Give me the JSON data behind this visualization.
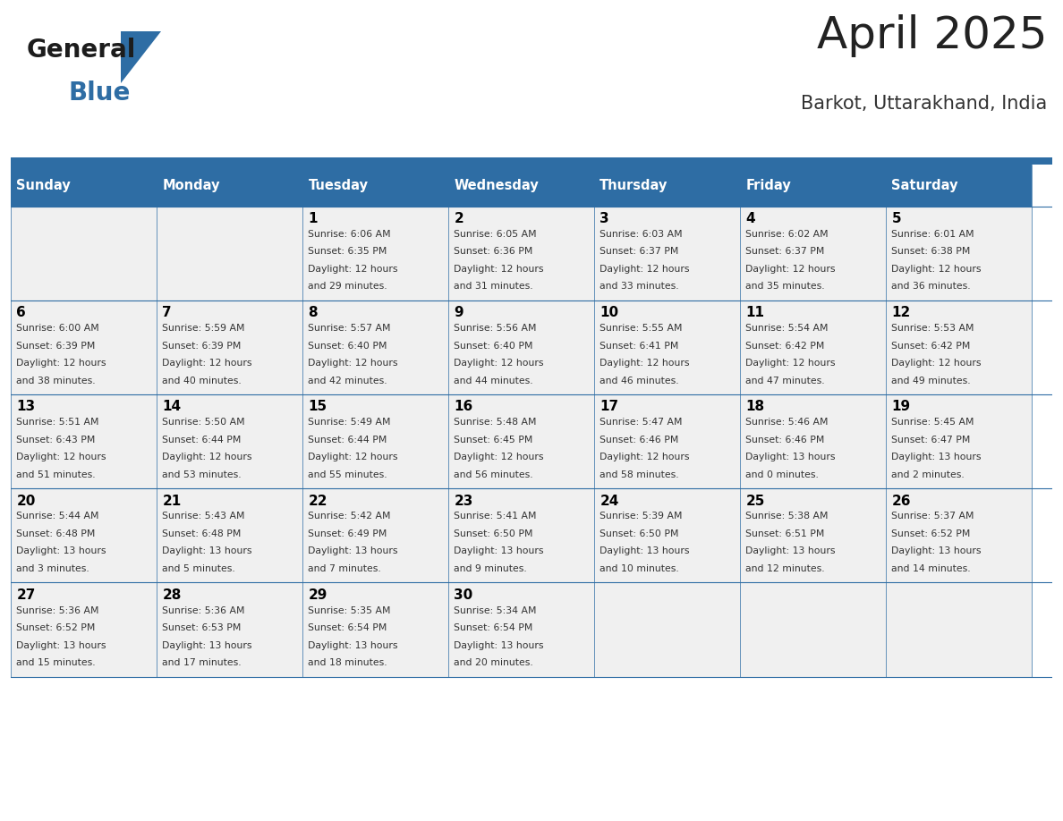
{
  "title": "April 2025",
  "subtitle": "Barkot, Uttarakhand, India",
  "header_bg_color": "#2E6DA4",
  "header_text_color": "#FFFFFF",
  "cell_bg_color": "#F0F0F0",
  "day_names": [
    "Sunday",
    "Monday",
    "Tuesday",
    "Wednesday",
    "Thursday",
    "Friday",
    "Saturday"
  ],
  "title_color": "#222222",
  "subtitle_color": "#333333",
  "day_num_color": "#000000",
  "text_color": "#333333",
  "line_color": "#2E6DA4",
  "calendar": [
    [
      {
        "day": null,
        "data": null
      },
      {
        "day": null,
        "data": null
      },
      {
        "day": 1,
        "data": [
          "Sunrise: 6:06 AM",
          "Sunset: 6:35 PM",
          "Daylight: 12 hours",
          "and 29 minutes."
        ]
      },
      {
        "day": 2,
        "data": [
          "Sunrise: 6:05 AM",
          "Sunset: 6:36 PM",
          "Daylight: 12 hours",
          "and 31 minutes."
        ]
      },
      {
        "day": 3,
        "data": [
          "Sunrise: 6:03 AM",
          "Sunset: 6:37 PM",
          "Daylight: 12 hours",
          "and 33 minutes."
        ]
      },
      {
        "day": 4,
        "data": [
          "Sunrise: 6:02 AM",
          "Sunset: 6:37 PM",
          "Daylight: 12 hours",
          "and 35 minutes."
        ]
      },
      {
        "day": 5,
        "data": [
          "Sunrise: 6:01 AM",
          "Sunset: 6:38 PM",
          "Daylight: 12 hours",
          "and 36 minutes."
        ]
      }
    ],
    [
      {
        "day": 6,
        "data": [
          "Sunrise: 6:00 AM",
          "Sunset: 6:39 PM",
          "Daylight: 12 hours",
          "and 38 minutes."
        ]
      },
      {
        "day": 7,
        "data": [
          "Sunrise: 5:59 AM",
          "Sunset: 6:39 PM",
          "Daylight: 12 hours",
          "and 40 minutes."
        ]
      },
      {
        "day": 8,
        "data": [
          "Sunrise: 5:57 AM",
          "Sunset: 6:40 PM",
          "Daylight: 12 hours",
          "and 42 minutes."
        ]
      },
      {
        "day": 9,
        "data": [
          "Sunrise: 5:56 AM",
          "Sunset: 6:40 PM",
          "Daylight: 12 hours",
          "and 44 minutes."
        ]
      },
      {
        "day": 10,
        "data": [
          "Sunrise: 5:55 AM",
          "Sunset: 6:41 PM",
          "Daylight: 12 hours",
          "and 46 minutes."
        ]
      },
      {
        "day": 11,
        "data": [
          "Sunrise: 5:54 AM",
          "Sunset: 6:42 PM",
          "Daylight: 12 hours",
          "and 47 minutes."
        ]
      },
      {
        "day": 12,
        "data": [
          "Sunrise: 5:53 AM",
          "Sunset: 6:42 PM",
          "Daylight: 12 hours",
          "and 49 minutes."
        ]
      }
    ],
    [
      {
        "day": 13,
        "data": [
          "Sunrise: 5:51 AM",
          "Sunset: 6:43 PM",
          "Daylight: 12 hours",
          "and 51 minutes."
        ]
      },
      {
        "day": 14,
        "data": [
          "Sunrise: 5:50 AM",
          "Sunset: 6:44 PM",
          "Daylight: 12 hours",
          "and 53 minutes."
        ]
      },
      {
        "day": 15,
        "data": [
          "Sunrise: 5:49 AM",
          "Sunset: 6:44 PM",
          "Daylight: 12 hours",
          "and 55 minutes."
        ]
      },
      {
        "day": 16,
        "data": [
          "Sunrise: 5:48 AM",
          "Sunset: 6:45 PM",
          "Daylight: 12 hours",
          "and 56 minutes."
        ]
      },
      {
        "day": 17,
        "data": [
          "Sunrise: 5:47 AM",
          "Sunset: 6:46 PM",
          "Daylight: 12 hours",
          "and 58 minutes."
        ]
      },
      {
        "day": 18,
        "data": [
          "Sunrise: 5:46 AM",
          "Sunset: 6:46 PM",
          "Daylight: 13 hours",
          "and 0 minutes."
        ]
      },
      {
        "day": 19,
        "data": [
          "Sunrise: 5:45 AM",
          "Sunset: 6:47 PM",
          "Daylight: 13 hours",
          "and 2 minutes."
        ]
      }
    ],
    [
      {
        "day": 20,
        "data": [
          "Sunrise: 5:44 AM",
          "Sunset: 6:48 PM",
          "Daylight: 13 hours",
          "and 3 minutes."
        ]
      },
      {
        "day": 21,
        "data": [
          "Sunrise: 5:43 AM",
          "Sunset: 6:48 PM",
          "Daylight: 13 hours",
          "and 5 minutes."
        ]
      },
      {
        "day": 22,
        "data": [
          "Sunrise: 5:42 AM",
          "Sunset: 6:49 PM",
          "Daylight: 13 hours",
          "and 7 minutes."
        ]
      },
      {
        "day": 23,
        "data": [
          "Sunrise: 5:41 AM",
          "Sunset: 6:50 PM",
          "Daylight: 13 hours",
          "and 9 minutes."
        ]
      },
      {
        "day": 24,
        "data": [
          "Sunrise: 5:39 AM",
          "Sunset: 6:50 PM",
          "Daylight: 13 hours",
          "and 10 minutes."
        ]
      },
      {
        "day": 25,
        "data": [
          "Sunrise: 5:38 AM",
          "Sunset: 6:51 PM",
          "Daylight: 13 hours",
          "and 12 minutes."
        ]
      },
      {
        "day": 26,
        "data": [
          "Sunrise: 5:37 AM",
          "Sunset: 6:52 PM",
          "Daylight: 13 hours",
          "and 14 minutes."
        ]
      }
    ],
    [
      {
        "day": 27,
        "data": [
          "Sunrise: 5:36 AM",
          "Sunset: 6:52 PM",
          "Daylight: 13 hours",
          "and 15 minutes."
        ]
      },
      {
        "day": 28,
        "data": [
          "Sunrise: 5:36 AM",
          "Sunset: 6:53 PM",
          "Daylight: 13 hours",
          "and 17 minutes."
        ]
      },
      {
        "day": 29,
        "data": [
          "Sunrise: 5:35 AM",
          "Sunset: 6:54 PM",
          "Daylight: 13 hours",
          "and 18 minutes."
        ]
      },
      {
        "day": 30,
        "data": [
          "Sunrise: 5:34 AM",
          "Sunset: 6:54 PM",
          "Daylight: 13 hours",
          "and 20 minutes."
        ]
      },
      {
        "day": null,
        "data": null
      },
      {
        "day": null,
        "data": null
      },
      {
        "day": null,
        "data": null
      }
    ]
  ],
  "fig_width": 11.88,
  "fig_height": 9.18,
  "dpi": 100
}
